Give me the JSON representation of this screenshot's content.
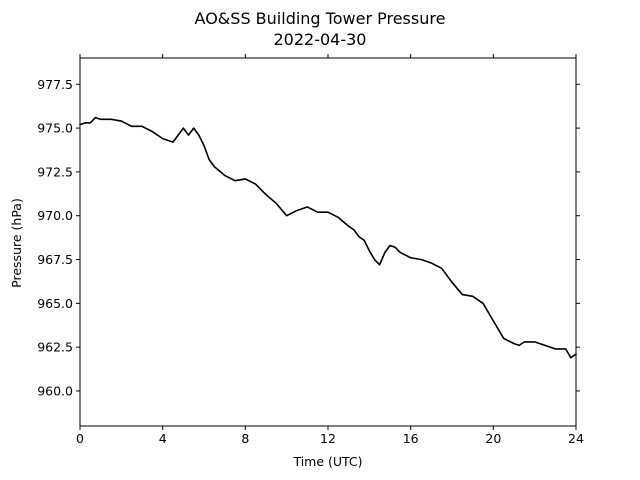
{
  "chart_data": {
    "type": "line",
    "title": "AO&SS Building Tower Pressure",
    "subtitle": "2022-04-30",
    "xlabel": "Time (UTC)",
    "ylabel": "Pressure (hPa)",
    "xlim": [
      0,
      24
    ],
    "ylim": [
      958.0,
      979.0
    ],
    "xticks": [
      0,
      4,
      8,
      12,
      16,
      20,
      24
    ],
    "xtick_labels": [
      "0",
      "4",
      "8",
      "12",
      "16",
      "20",
      "24"
    ],
    "yticks": [
      960.0,
      962.5,
      965.0,
      967.5,
      970.0,
      972.5,
      975.0,
      977.5
    ],
    "ytick_labels": [
      "960.0",
      "962.5",
      "965.0",
      "967.5",
      "970.0",
      "972.5",
      "975.0",
      "977.5"
    ],
    "grid": false,
    "line_color": "#000000",
    "series": [
      {
        "x": [
          0.0,
          0.25,
          0.5,
          0.75,
          1.0,
          1.5,
          2.0,
          2.5,
          3.0,
          3.5,
          4.0,
          4.25,
          4.5,
          4.75,
          5.0,
          5.25,
          5.5,
          5.75,
          6.0,
          6.25,
          6.5,
          7.0,
          7.5,
          8.0,
          8.5,
          9.0,
          9.5,
          10.0,
          10.5,
          11.0,
          11.5,
          12.0,
          12.5,
          13.0,
          13.25,
          13.5,
          13.75,
          14.0,
          14.25,
          14.5,
          14.75,
          15.0,
          15.25,
          15.5,
          16.0,
          16.5,
          17.0,
          17.5,
          18.0,
          18.5,
          19.0,
          19.5,
          20.0,
          20.5,
          21.0,
          21.25,
          21.5,
          22.0,
          22.5,
          23.0,
          23.5,
          23.75,
          24.0
        ],
        "y": [
          975.2,
          975.3,
          975.3,
          975.6,
          975.5,
          975.5,
          975.4,
          975.1,
          975.1,
          974.8,
          974.4,
          974.3,
          974.2,
          974.6,
          975.0,
          974.6,
          975.0,
          974.6,
          974.0,
          973.2,
          972.8,
          972.3,
          972.0,
          972.1,
          971.8,
          971.2,
          970.7,
          970.0,
          970.3,
          970.5,
          970.2,
          970.2,
          969.9,
          969.4,
          969.2,
          968.8,
          968.6,
          968.0,
          967.5,
          967.2,
          967.9,
          968.3,
          968.2,
          967.9,
          967.6,
          967.5,
          967.3,
          967.0,
          966.2,
          965.5,
          965.4,
          965.0,
          964.0,
          963.0,
          962.7,
          962.6,
          962.8,
          962.8,
          962.6,
          962.4,
          962.4,
          961.9,
          962.1
        ]
      }
    ]
  }
}
